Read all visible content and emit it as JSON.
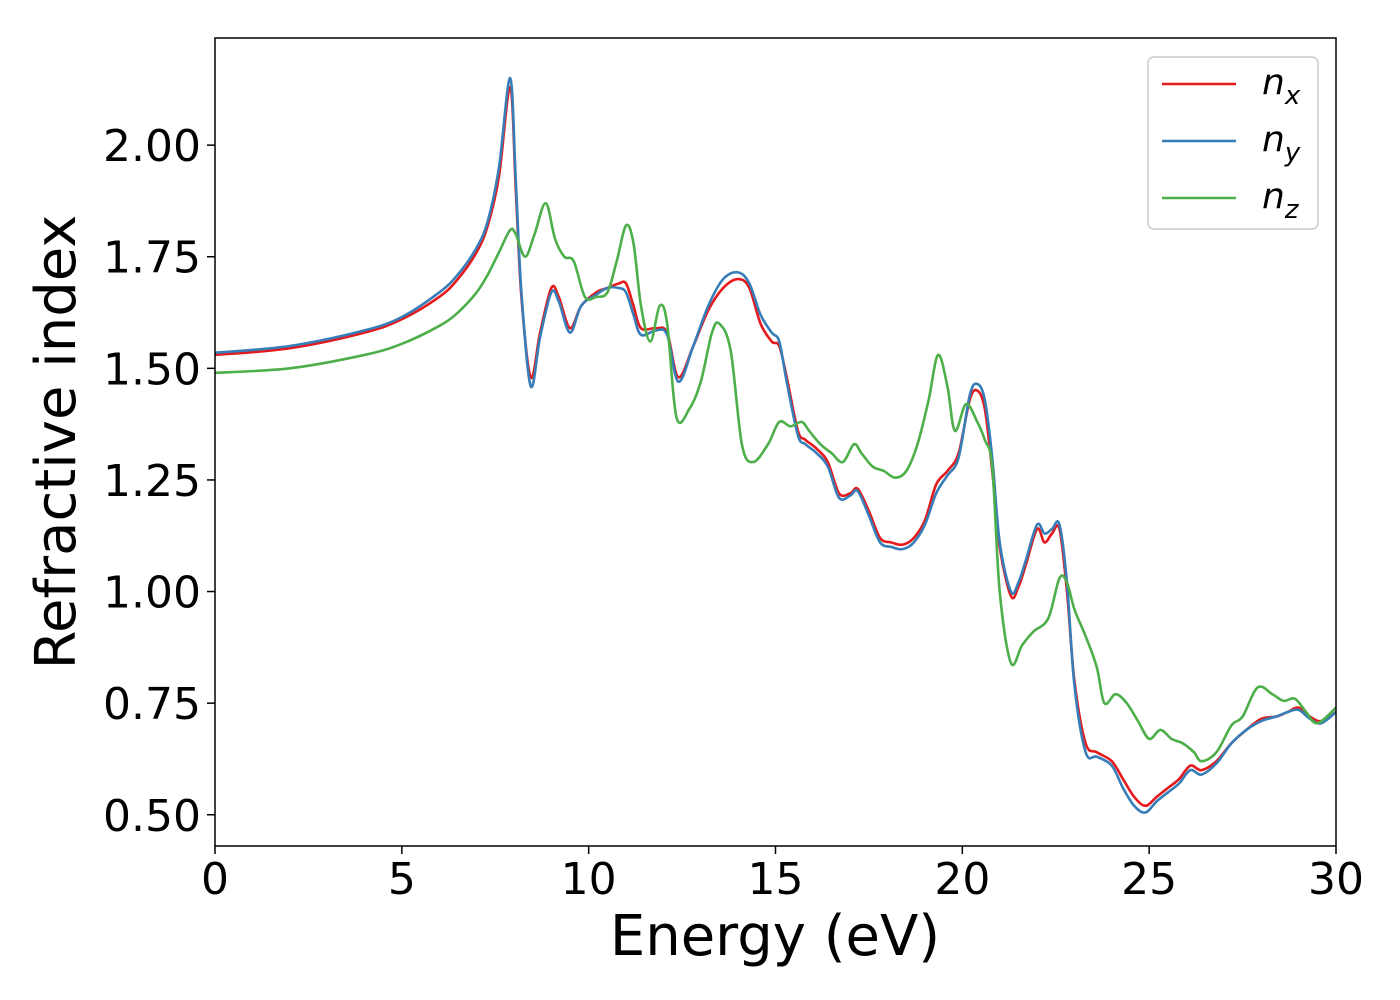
{
  "chart_data": {
    "type": "line",
    "xlabel": "Energy (eV)",
    "ylabel": "Refractive index",
    "xlim": [
      0,
      30
    ],
    "ylim": [
      0.43,
      2.24
    ],
    "xticks": [
      0,
      5,
      10,
      15,
      20,
      25,
      30
    ],
    "xtick_labels": [
      "0",
      "5",
      "10",
      "15",
      "20",
      "25",
      "30"
    ],
    "yticks": [
      0.5,
      0.75,
      1.0,
      1.25,
      1.5,
      1.75,
      2.0
    ],
    "ytick_labels": [
      "0.50",
      "0.75",
      "1.00",
      "1.25",
      "1.50",
      "1.75",
      "2.00"
    ],
    "grid": false,
    "legend": "top-right",
    "series": [
      {
        "name": "n",
        "subscript": "x",
        "color": "#e41a1c",
        "x": [
          0,
          2,
          4,
          5,
          6,
          6.5,
          7,
          7.3,
          7.6,
          7.9,
          8.05,
          8.2,
          8.45,
          8.7,
          9.0,
          9.2,
          9.5,
          9.8,
          10.2,
          10.5,
          10.8,
          11.0,
          11.2,
          11.4,
          11.8,
          12.1,
          12.4,
          12.8,
          13.2,
          13.6,
          14.0,
          14.3,
          14.6,
          14.9,
          15.1,
          15.3,
          15.6,
          15.8,
          16.1,
          16.4,
          16.7,
          17.0,
          17.2,
          17.5,
          17.8,
          18.1,
          18.4,
          18.7,
          19.0,
          19.3,
          19.6,
          19.9,
          20.2,
          20.4,
          20.6,
          20.8,
          21.0,
          21.3,
          21.5,
          21.7,
          22.0,
          22.2,
          22.4,
          22.6,
          22.8,
          23.0,
          23.3,
          23.6,
          24.0,
          24.3,
          24.6,
          24.9,
          25.2,
          25.5,
          25.8,
          26.1,
          26.4,
          26.8,
          27.2,
          27.6,
          28.0,
          28.4,
          28.7,
          29.0,
          29.3,
          29.6,
          30.0
        ],
        "y": [
          1.53,
          1.545,
          1.58,
          1.61,
          1.66,
          1.7,
          1.76,
          1.82,
          1.93,
          2.13,
          1.9,
          1.66,
          1.48,
          1.58,
          1.68,
          1.66,
          1.59,
          1.64,
          1.67,
          1.68,
          1.69,
          1.69,
          1.64,
          1.59,
          1.59,
          1.58,
          1.48,
          1.55,
          1.63,
          1.68,
          1.7,
          1.68,
          1.6,
          1.56,
          1.55,
          1.48,
          1.36,
          1.34,
          1.32,
          1.29,
          1.22,
          1.22,
          1.23,
          1.18,
          1.12,
          1.11,
          1.105,
          1.12,
          1.16,
          1.24,
          1.27,
          1.31,
          1.43,
          1.45,
          1.41,
          1.27,
          1.1,
          0.99,
          1.01,
          1.06,
          1.14,
          1.11,
          1.13,
          1.14,
          1.0,
          0.8,
          0.66,
          0.64,
          0.62,
          0.58,
          0.54,
          0.52,
          0.54,
          0.56,
          0.58,
          0.61,
          0.6,
          0.62,
          0.66,
          0.69,
          0.715,
          0.72,
          0.73,
          0.74,
          0.72,
          0.71,
          0.73
        ]
      },
      {
        "name": "n",
        "subscript": "y",
        "color": "#377eb8",
        "x": [
          0,
          2,
          4,
          5,
          6,
          6.5,
          7,
          7.3,
          7.6,
          7.9,
          8.05,
          8.2,
          8.45,
          8.7,
          9.0,
          9.2,
          9.5,
          9.8,
          10.2,
          10.5,
          10.8,
          11.0,
          11.2,
          11.4,
          11.8,
          12.1,
          12.4,
          12.8,
          13.2,
          13.6,
          14.0,
          14.3,
          14.6,
          14.9,
          15.1,
          15.3,
          15.6,
          15.8,
          16.1,
          16.4,
          16.7,
          17.0,
          17.2,
          17.5,
          17.8,
          18.1,
          18.4,
          18.7,
          19.0,
          19.3,
          19.6,
          19.9,
          20.2,
          20.4,
          20.6,
          20.8,
          21.0,
          21.3,
          21.5,
          21.7,
          22.0,
          22.2,
          22.4,
          22.6,
          22.8,
          23.0,
          23.3,
          23.6,
          24.0,
          24.3,
          24.6,
          24.9,
          25.2,
          25.5,
          25.8,
          26.1,
          26.4,
          26.8,
          27.2,
          27.6,
          28.0,
          28.4,
          28.7,
          29.0,
          29.3,
          29.6,
          30.0
        ],
        "y": [
          1.535,
          1.55,
          1.585,
          1.615,
          1.67,
          1.71,
          1.77,
          1.83,
          1.95,
          2.15,
          1.92,
          1.67,
          1.46,
          1.57,
          1.67,
          1.65,
          1.58,
          1.64,
          1.665,
          1.68,
          1.68,
          1.67,
          1.62,
          1.575,
          1.585,
          1.575,
          1.47,
          1.55,
          1.64,
          1.7,
          1.715,
          1.69,
          1.62,
          1.58,
          1.56,
          1.47,
          1.35,
          1.33,
          1.31,
          1.28,
          1.21,
          1.215,
          1.225,
          1.17,
          1.11,
          1.1,
          1.095,
          1.11,
          1.15,
          1.22,
          1.26,
          1.3,
          1.44,
          1.465,
          1.43,
          1.3,
          1.11,
          1.0,
          1.02,
          1.07,
          1.15,
          1.13,
          1.14,
          1.15,
          1.02,
          0.79,
          0.64,
          0.63,
          0.61,
          0.56,
          0.52,
          0.505,
          0.53,
          0.55,
          0.57,
          0.6,
          0.59,
          0.615,
          0.66,
          0.69,
          0.71,
          0.72,
          0.73,
          0.735,
          0.715,
          0.705,
          0.73
        ]
      },
      {
        "name": "n",
        "subscript": "z",
        "color": "#4daf4a",
        "x": [
          0,
          2,
          4,
          5,
          6,
          6.5,
          7,
          7.3,
          7.6,
          7.9,
          8.05,
          8.3,
          8.55,
          8.85,
          9.1,
          9.35,
          9.6,
          9.9,
          10.2,
          10.5,
          10.75,
          11.0,
          11.2,
          11.4,
          11.65,
          11.9,
          12.1,
          12.35,
          12.7,
          13.0,
          13.3,
          13.5,
          13.8,
          14.1,
          14.4,
          14.8,
          15.1,
          15.4,
          15.7,
          15.9,
          16.2,
          16.5,
          16.8,
          17.1,
          17.3,
          17.6,
          17.9,
          18.2,
          18.5,
          18.8,
          19.1,
          19.35,
          19.6,
          19.8,
          20.1,
          20.4,
          20.6,
          20.8,
          21.0,
          21.3,
          21.6,
          21.9,
          22.3,
          22.6,
          22.8,
          23.0,
          23.3,
          23.6,
          23.8,
          24.1,
          24.4,
          24.7,
          25.0,
          25.3,
          25.6,
          25.9,
          26.2,
          26.4,
          26.8,
          27.2,
          27.5,
          27.9,
          28.3,
          28.6,
          28.9,
          29.2,
          29.5,
          30.0
        ],
        "y": [
          1.49,
          1.5,
          1.53,
          1.555,
          1.595,
          1.625,
          1.67,
          1.71,
          1.76,
          1.81,
          1.8,
          1.75,
          1.8,
          1.87,
          1.79,
          1.75,
          1.74,
          1.66,
          1.66,
          1.67,
          1.74,
          1.82,
          1.78,
          1.64,
          1.56,
          1.64,
          1.6,
          1.39,
          1.41,
          1.47,
          1.58,
          1.6,
          1.54,
          1.33,
          1.29,
          1.33,
          1.38,
          1.37,
          1.38,
          1.36,
          1.33,
          1.31,
          1.29,
          1.33,
          1.31,
          1.28,
          1.27,
          1.255,
          1.27,
          1.33,
          1.43,
          1.53,
          1.46,
          1.36,
          1.42,
          1.38,
          1.34,
          1.28,
          1.0,
          0.84,
          0.88,
          0.91,
          0.94,
          1.03,
          1.02,
          0.96,
          0.9,
          0.83,
          0.75,
          0.77,
          0.75,
          0.71,
          0.67,
          0.69,
          0.67,
          0.66,
          0.64,
          0.62,
          0.64,
          0.7,
          0.72,
          0.785,
          0.77,
          0.755,
          0.76,
          0.73,
          0.705,
          0.74
        ]
      }
    ]
  }
}
